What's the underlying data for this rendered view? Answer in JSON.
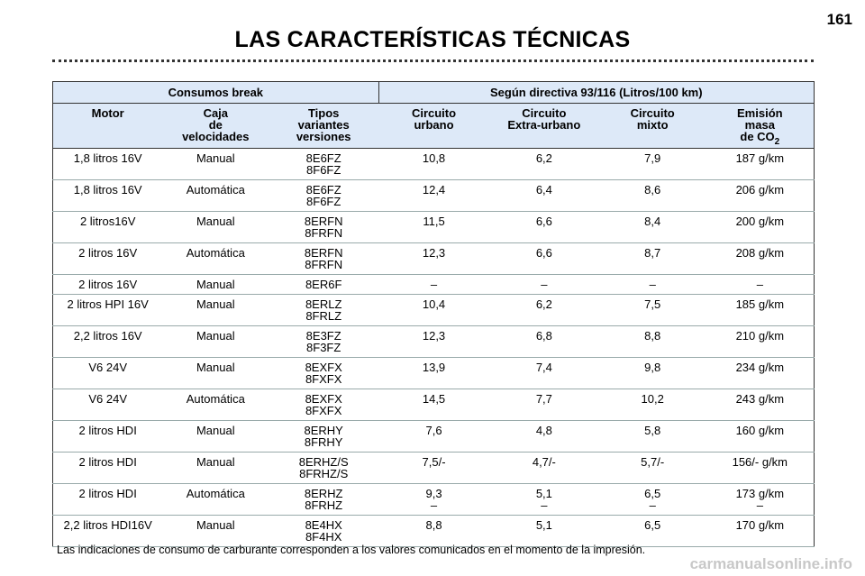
{
  "page_number": "161",
  "title": "LAS CARACTERÍSTICAS TÉCNICAS",
  "table": {
    "group_headers": [
      "Consumos break",
      "Según directiva 93/116 (Litros/100 km)"
    ],
    "headers": [
      {
        "lines": [
          "Motor"
        ]
      },
      {
        "lines": [
          "Caja",
          "de",
          "velocidades"
        ]
      },
      {
        "lines": [
          "Tipos",
          "variantes",
          "versiones"
        ]
      },
      {
        "lines": [
          "Circuito",
          "urbano"
        ]
      },
      {
        "lines": [
          "Circuito",
          "Extra-urbano"
        ]
      },
      {
        "lines": [
          "Circuito",
          "mixto"
        ]
      },
      {
        "lines": [
          "Emisión",
          "masa",
          "de CO"
        ],
        "subscript": "2"
      }
    ],
    "rows": [
      [
        [
          "1,8 litros 16V"
        ],
        [
          "Manual"
        ],
        [
          "8E6FZ",
          "8F6FZ"
        ],
        [
          "10,8"
        ],
        [
          "6,2"
        ],
        [
          "7,9"
        ],
        [
          "187 g/km"
        ]
      ],
      [
        [
          "1,8 litros 16V"
        ],
        [
          "Automática"
        ],
        [
          "8E6FZ",
          "8F6FZ"
        ],
        [
          "12,4"
        ],
        [
          "6,4"
        ],
        [
          "8,6"
        ],
        [
          "206 g/km"
        ]
      ],
      [
        [
          "2 litros16V"
        ],
        [
          "Manual"
        ],
        [
          "8ERFN",
          "8FRFN"
        ],
        [
          "11,5"
        ],
        [
          "6,6"
        ],
        [
          "8,4"
        ],
        [
          "200 g/km"
        ]
      ],
      [
        [
          "2 litros 16V"
        ],
        [
          "Automática"
        ],
        [
          "8ERFN",
          "8FRFN"
        ],
        [
          "12,3"
        ],
        [
          "6,6"
        ],
        [
          "8,7"
        ],
        [
          "208 g/km"
        ]
      ],
      [
        [
          "2 litros 16V"
        ],
        [
          "Manual"
        ],
        [
          "8ER6F"
        ],
        [
          "–"
        ],
        [
          "–"
        ],
        [
          "–"
        ],
        [
          "–"
        ]
      ],
      [
        [
          "2 litros HPI 16V"
        ],
        [
          "Manual"
        ],
        [
          "8ERLZ",
          "8FRLZ"
        ],
        [
          "10,4"
        ],
        [
          "6,2"
        ],
        [
          "7,5"
        ],
        [
          "185 g/km"
        ]
      ],
      [
        [
          "2,2 litros 16V"
        ],
        [
          "Manual"
        ],
        [
          "8E3FZ",
          "8F3FZ"
        ],
        [
          "12,3"
        ],
        [
          "6,8"
        ],
        [
          "8,8"
        ],
        [
          "210 g/km"
        ]
      ],
      [
        [
          "V6 24V"
        ],
        [
          "Manual"
        ],
        [
          "8EXFX",
          "8FXFX"
        ],
        [
          "13,9"
        ],
        [
          "7,4"
        ],
        [
          "9,8"
        ],
        [
          "234 g/km"
        ]
      ],
      [
        [
          "V6 24V"
        ],
        [
          "Automática"
        ],
        [
          "8EXFX",
          "8FXFX"
        ],
        [
          "14,5"
        ],
        [
          "7,7"
        ],
        [
          "10,2"
        ],
        [
          "243 g/km"
        ]
      ],
      [
        [
          "2 litros HDI"
        ],
        [
          "Manual"
        ],
        [
          "8ERHY",
          "8FRHY"
        ],
        [
          "7,6"
        ],
        [
          "4,8"
        ],
        [
          "5,8"
        ],
        [
          "160 g/km"
        ]
      ],
      [
        [
          "2 litros HDI"
        ],
        [
          "Manual"
        ],
        [
          "8ERHZ/S",
          "8FRHZ/S"
        ],
        [
          "7,5/-"
        ],
        [
          "4,7/-"
        ],
        [
          "5,7/-"
        ],
        [
          "156/- g/km"
        ]
      ],
      [
        [
          "2 litros HDI"
        ],
        [
          "Automática"
        ],
        [
          "8ERHZ",
          "8FRHZ"
        ],
        [
          "9,3",
          "–"
        ],
        [
          "5,1",
          "–"
        ],
        [
          "6,5",
          "–"
        ],
        [
          "173 g/km",
          "–"
        ]
      ],
      [
        [
          "2,2 litros HDI16V"
        ],
        [
          "Manual"
        ],
        [
          "8E4HX",
          "8F4HX"
        ],
        [
          "8,8"
        ],
        [
          "5,1"
        ],
        [
          "6,5"
        ],
        [
          "170 g/km"
        ]
      ]
    ]
  },
  "footnote": "Las indicaciones de consumo de carburante corresponden a los valores comunicados en el momento de la impresión.",
  "watermark": "carmanualsonline.info"
}
